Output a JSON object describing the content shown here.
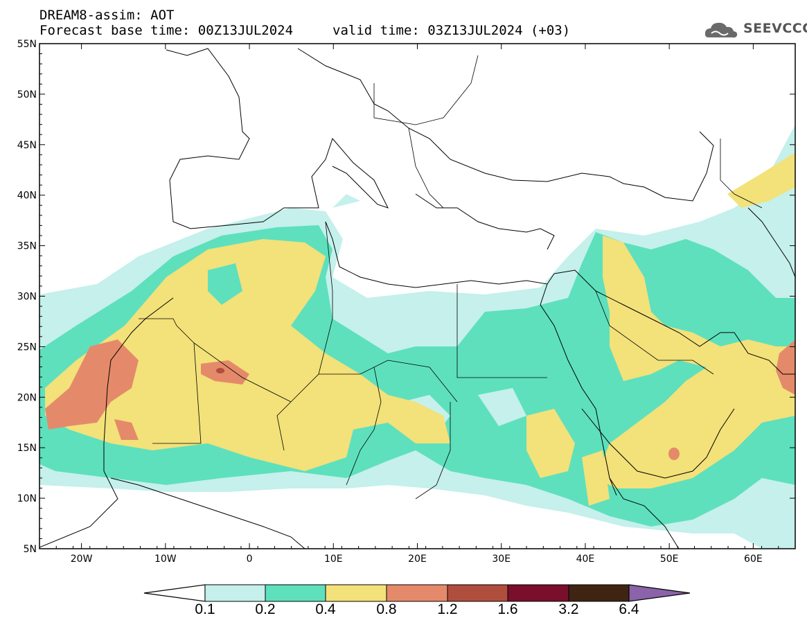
{
  "header": {
    "line1": "DREAM8-assim: AOT",
    "line2": "Forecast base time: 00Z13JUL2024",
    "valid": "valid time: 03Z13JUL2024 (+03)"
  },
  "logo": {
    "text": "SEEVCCC",
    "icon": "cloud-icon"
  },
  "map": {
    "lat_labels": [
      "55N",
      "50N",
      "45N",
      "40N",
      "35N",
      "30N",
      "25N",
      "20N",
      "15N",
      "10N",
      "5N"
    ],
    "lon_labels": [
      "20W",
      "10W",
      "0",
      "10E",
      "20E",
      "30E",
      "40E",
      "50E",
      "60E"
    ],
    "lon_range": [
      -25,
      65
    ],
    "lat_range": [
      5,
      55
    ]
  },
  "colorbar": {
    "labels": [
      "0.1",
      "0.2",
      "0.4",
      "0.8",
      "1.2",
      "1.6",
      "3.2",
      "6.4"
    ],
    "colors": [
      "#c5f0eb",
      "#5ee0bd",
      "#f3e17a",
      "#e48a6a",
      "#b04e3e",
      "#7a0f2c",
      "#3f2414",
      "#8a63a8"
    ]
  }
}
